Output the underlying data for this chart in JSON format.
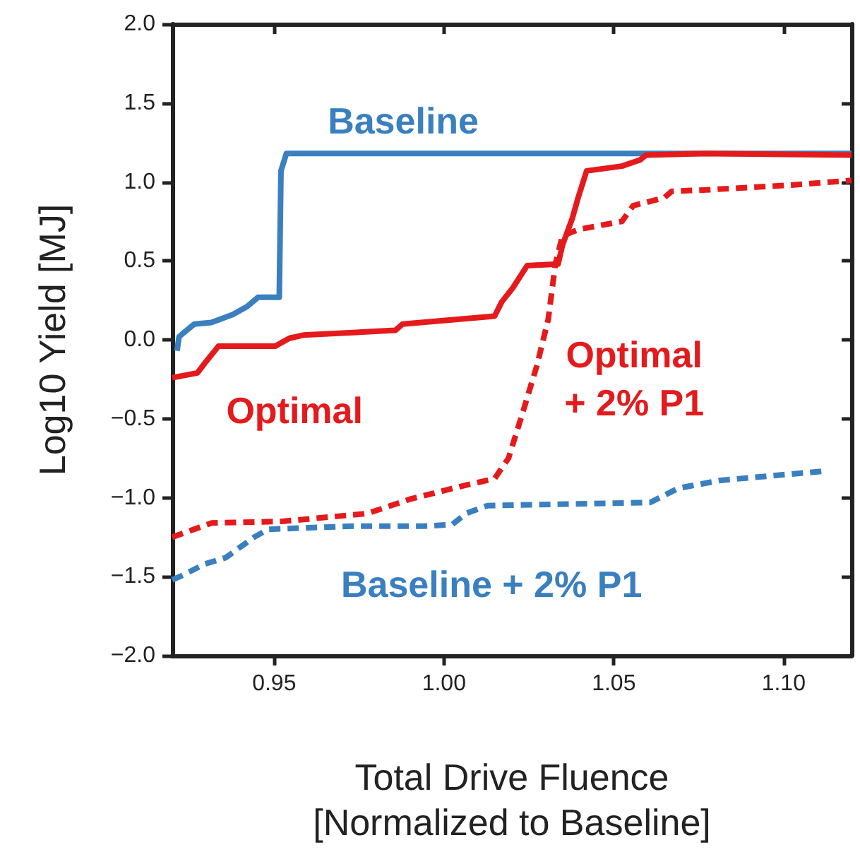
{
  "chart_data": {
    "type": "line",
    "xlabel": "Total Drive Fluence\n[Normalized to Baseline]",
    "ylabel": "Log10 Yield [MJ]",
    "xlim": [
      0.92,
      1.12
    ],
    "xticks": [
      {
        "value": 0.95,
        "label": "0.95"
      },
      {
        "value": 1.0,
        "label": "1.00"
      },
      {
        "value": 1.05,
        "label": "1.05"
      },
      {
        "value": 1.1,
        "label": "1.10"
      }
    ],
    "ylim": [
      -2,
      2
    ],
    "yticks": [
      {
        "value": -2,
        "label": "−2.0"
      },
      {
        "value": -1.5,
        "label": "−1.5"
      },
      {
        "value": -1,
        "label": "−1.0"
      },
      {
        "value": -0.5,
        "label": "−0.5"
      },
      {
        "value": 0,
        "label": "0.0"
      },
      {
        "value": 0.5,
        "label": "0.5"
      },
      {
        "value": 1,
        "label": "1.0"
      },
      {
        "value": 1.5,
        "label": "1.5"
      },
      {
        "value": 2,
        "label": "2.0"
      }
    ],
    "grid": false,
    "marker": "none",
    "series": [
      {
        "name": "Baseline",
        "color": "#3a7fbf",
        "line_style": "solid",
        "x": [
          0.9214,
          0.922,
          0.9265,
          0.9315,
          0.9378,
          0.942,
          0.9453,
          0.9515,
          0.952,
          0.9536,
          1.12
        ],
        "values": [
          -0.07,
          0.02,
          0.1,
          0.11,
          0.16,
          0.21,
          0.27,
          0.27,
          1.07,
          1.18,
          1.18
        ]
      },
      {
        "name": "Optimal",
        "color": "#e41a1c",
        "line_style": "solid",
        "x": [
          0.92,
          0.9274,
          0.9295,
          0.9336,
          0.9503,
          0.9545,
          0.9586,
          0.9857,
          0.9878,
          1.0149,
          1.017,
          1.0203,
          1.0245,
          1.0336,
          1.0349,
          1.0378,
          1.0395,
          1.042,
          1.0524,
          1.0578,
          1.0595,
          1.0774,
          1.12
        ],
        "values": [
          -0.24,
          -0.21,
          -0.15,
          -0.04,
          -0.04,
          0.01,
          0.03,
          0.06,
          0.1,
          0.15,
          0.24,
          0.33,
          0.47,
          0.48,
          0.6,
          0.77,
          0.9,
          1.07,
          1.1,
          1.14,
          1.17,
          1.18,
          1.17
        ]
      },
      {
        "name": "Optimal\n+ 2% P1",
        "color": "#e41a1c",
        "line_style": "dashed",
        "x": [
          0.92,
          0.9316,
          0.9524,
          0.9774,
          0.9899,
          1.0065,
          1.0149,
          1.019,
          1.0232,
          1.0274,
          1.0307,
          1.0328,
          1.0349,
          1.0399,
          1.0524,
          1.0557,
          1.0649,
          1.067,
          1.0774,
          1.1024,
          1.12
        ],
        "values": [
          -1.25,
          -1.16,
          -1.15,
          -1.1,
          -1.01,
          -0.92,
          -0.88,
          -0.75,
          -0.46,
          -0.16,
          0.13,
          0.48,
          0.66,
          0.7,
          0.75,
          0.85,
          0.9,
          0.94,
          0.95,
          0.98,
          1.01
        ]
      },
      {
        "name": "Baseline + 2% P1",
        "color": "#3a7fbf",
        "line_style": "dashed",
        "x": [
          0.92,
          0.9232,
          0.9295,
          0.9357,
          0.9441,
          0.9482,
          0.9732,
          0.9941,
          1.0024,
          1.0065,
          1.0128,
          1.0607,
          1.069,
          1.0815,
          1.1128
        ],
        "values": [
          -1.52,
          -1.49,
          -1.42,
          -1.38,
          -1.25,
          -1.2,
          -1.18,
          -1.18,
          -1.17,
          -1.1,
          -1.05,
          -1.03,
          -0.94,
          -0.89,
          -0.83
        ]
      }
    ]
  }
}
